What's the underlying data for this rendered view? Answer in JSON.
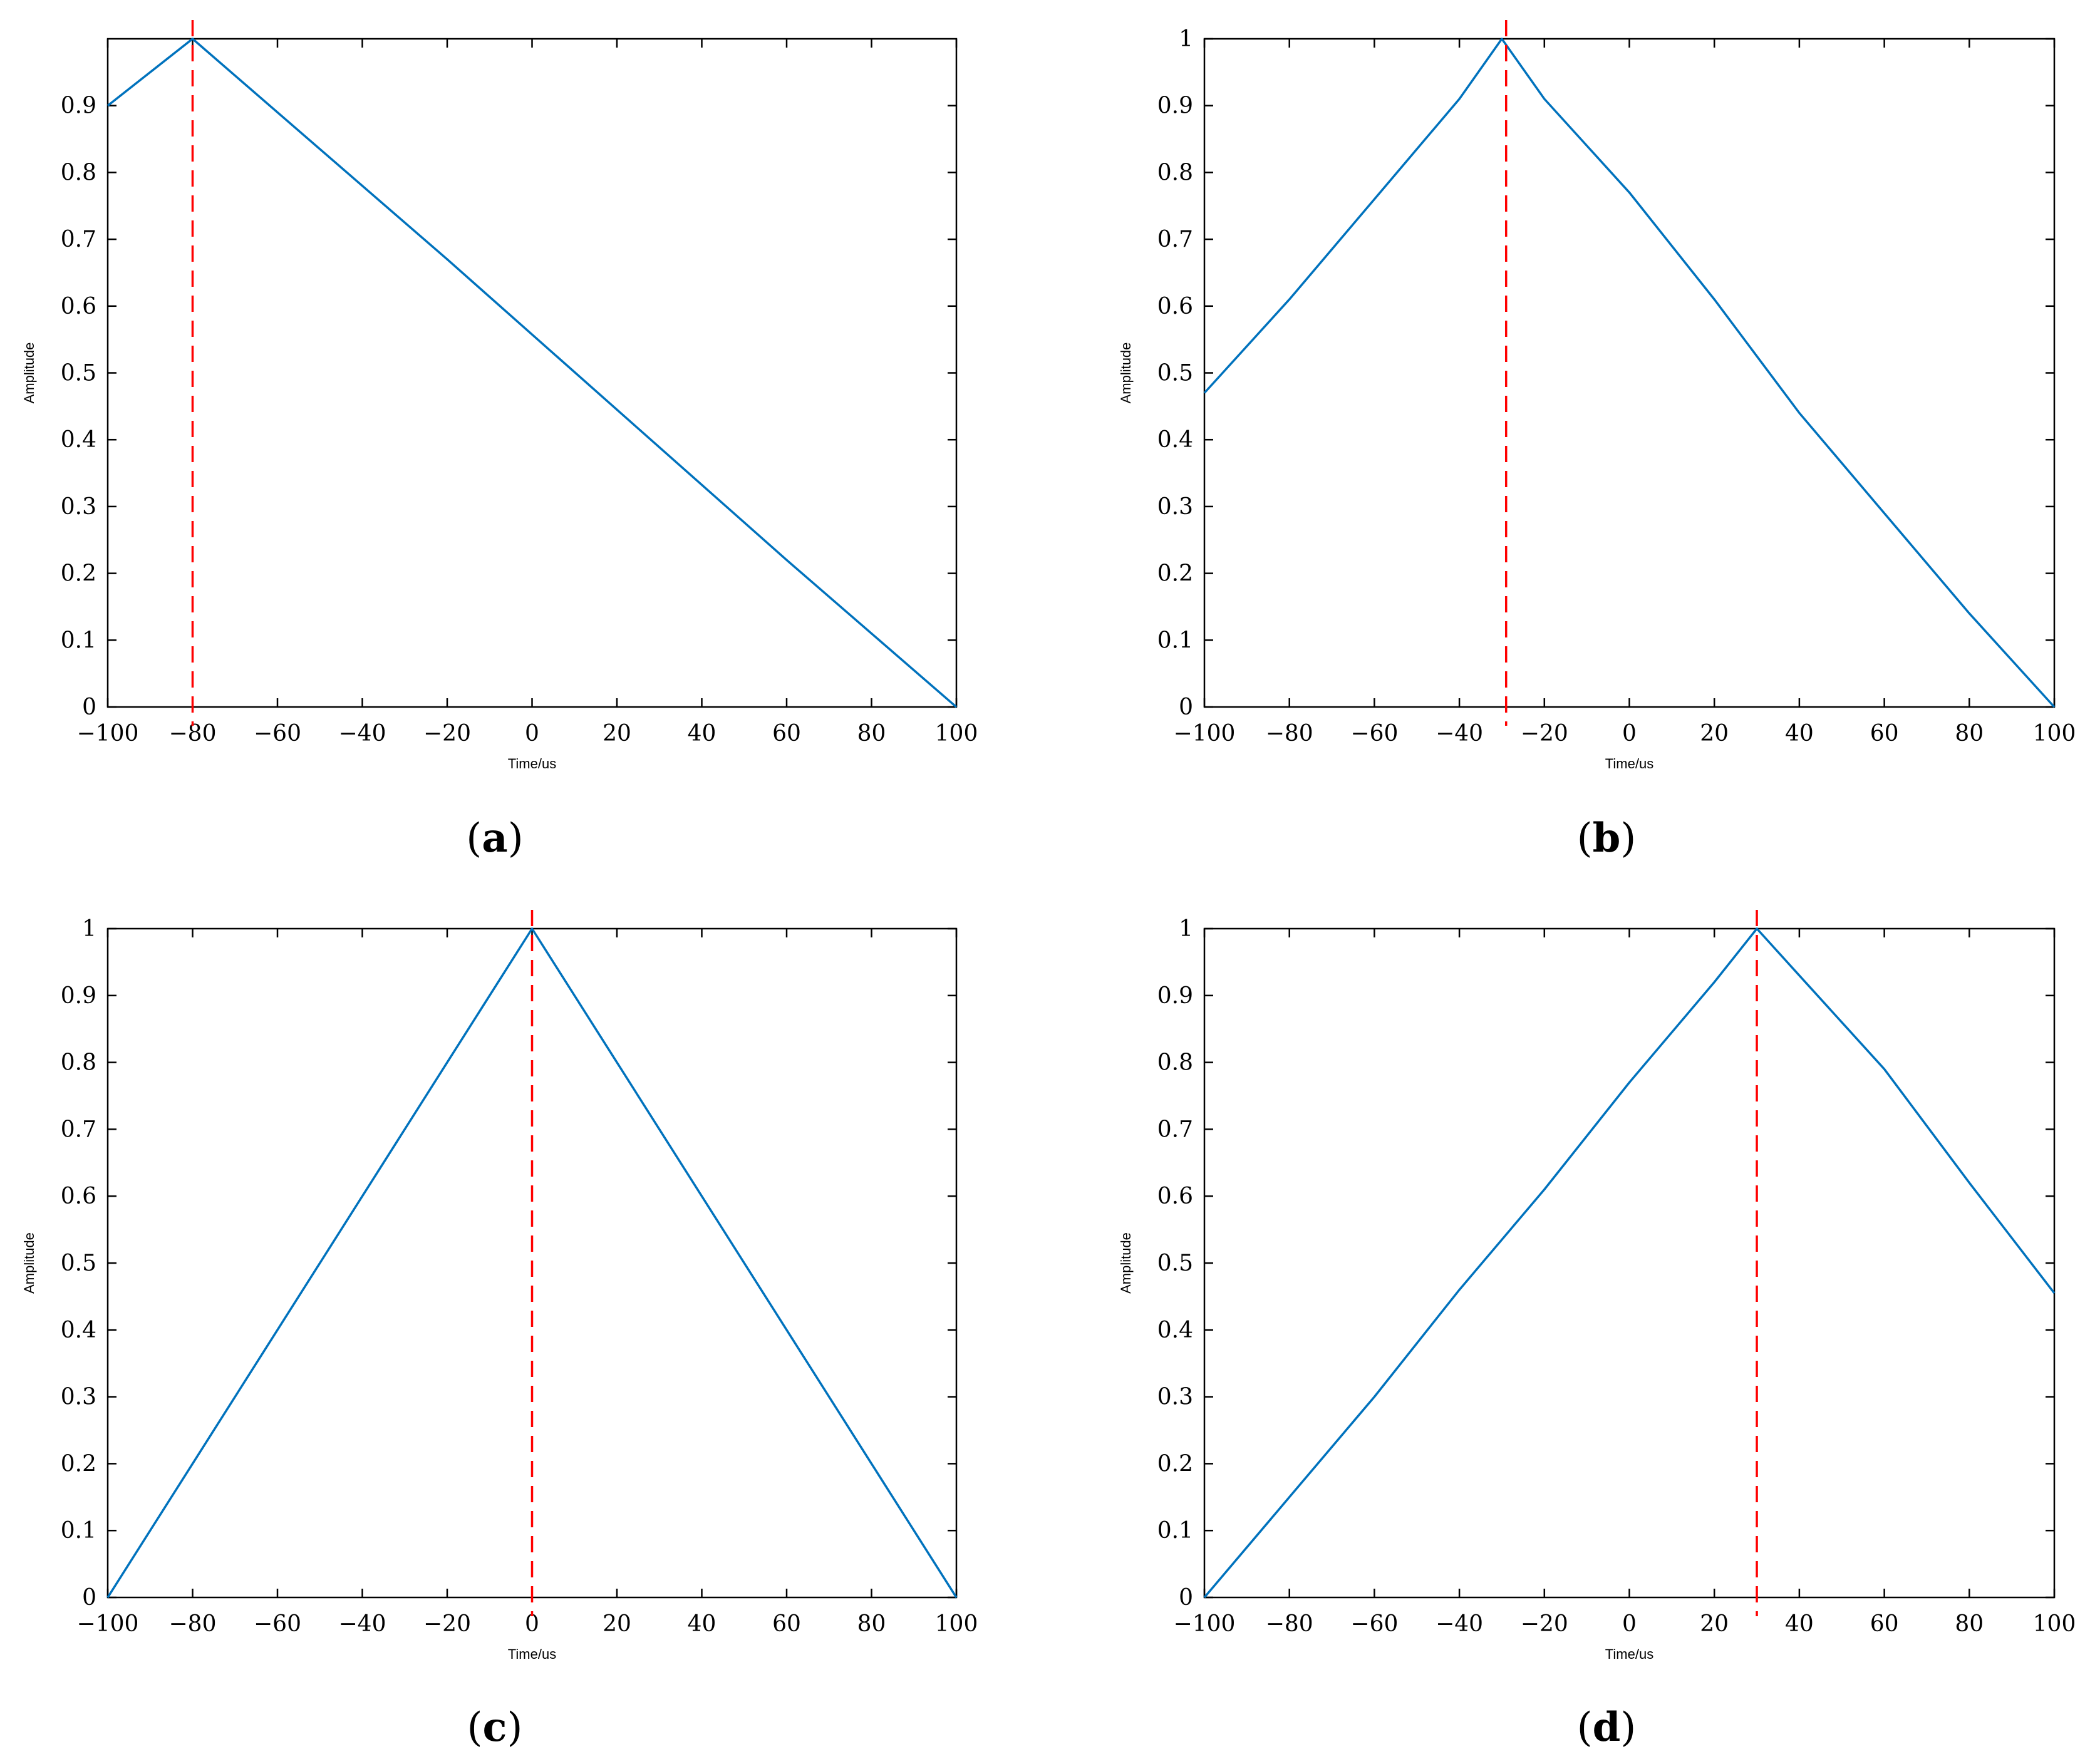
{
  "chart_data": [
    {
      "panel": "(a)",
      "caption_letter": "a",
      "type": "line",
      "xlabel": "Time/us",
      "ylabel": "Amplitude",
      "xlim": [
        -100,
        100
      ],
      "ylim": [
        0,
        1
      ],
      "x_ticks": [
        "−100",
        "−80",
        "−60",
        "−40",
        "−20",
        "0",
        "20",
        "40",
        "60",
        "80",
        "100"
      ],
      "y_ticks": [
        "0",
        "0.1",
        "0.2",
        "0.3",
        "0.4",
        "0.5",
        "0.6",
        "0.7",
        "0.8",
        "0.9"
      ],
      "grid": false,
      "line_color": "#0072BD",
      "marker_color": "#FF0000",
      "series": [
        {
          "x": [
            -100,
            -80,
            -20,
            60,
            100
          ],
          "y": [
            0.9,
            1.0,
            0.67,
            0.22,
            0.0
          ]
        }
      ],
      "marker_line": {
        "x": -80,
        "style": "dashed"
      }
    },
    {
      "panel": "(b)",
      "caption_letter": "b",
      "type": "line",
      "xlabel": "Time/us",
      "ylabel": "Amplitude",
      "xlim": [
        -100,
        100
      ],
      "ylim": [
        0,
        1
      ],
      "x_ticks": [
        "−100",
        "−80",
        "−60",
        "−40",
        "−20",
        "0",
        "20",
        "40",
        "60",
        "80",
        "100"
      ],
      "y_ticks": [
        "0",
        "0.1",
        "0.2",
        "0.3",
        "0.4",
        "0.5",
        "0.6",
        "0.7",
        "0.8",
        "0.9",
        "1"
      ],
      "grid": false,
      "line_color": "#0072BD",
      "marker_color": "#FF0000",
      "series": [
        {
          "x": [
            -100,
            -80,
            -60,
            -40,
            -30,
            -20,
            0,
            20,
            40,
            60,
            80,
            100
          ],
          "y": [
            0.47,
            0.61,
            0.76,
            0.91,
            1.0,
            0.91,
            0.77,
            0.61,
            0.44,
            0.29,
            0.14,
            0.0
          ]
        }
      ],
      "marker_line": {
        "x": -29,
        "style": "dashed"
      }
    },
    {
      "panel": "(c)",
      "caption_letter": "c",
      "type": "line",
      "xlabel": "Time/us",
      "ylabel": "Amplitude",
      "xlim": [
        -100,
        100
      ],
      "ylim": [
        0,
        1
      ],
      "x_ticks": [
        "−100",
        "−80",
        "−60",
        "−40",
        "−20",
        "0",
        "20",
        "40",
        "60",
        "80",
        "100"
      ],
      "y_ticks": [
        "0",
        "0.1",
        "0.2",
        "0.3",
        "0.4",
        "0.5",
        "0.6",
        "0.7",
        "0.8",
        "0.9",
        "1"
      ],
      "grid": false,
      "line_color": "#0072BD",
      "marker_color": "#FF0000",
      "series": [
        {
          "x": [
            -100,
            -80,
            -60,
            -40,
            -20,
            0,
            20,
            40,
            60,
            80,
            100
          ],
          "y": [
            0.0,
            0.2,
            0.4,
            0.6,
            0.8,
            1.0,
            0.8,
            0.6,
            0.4,
            0.2,
            0.0
          ]
        }
      ],
      "marker_line": {
        "x": 0,
        "style": "dashed"
      }
    },
    {
      "panel": "(d)",
      "caption_letter": "d",
      "type": "line",
      "xlabel": "Time/us",
      "ylabel": "Amplitude",
      "xlim": [
        -100,
        100
      ],
      "ylim": [
        0,
        1
      ],
      "x_ticks": [
        "−100",
        "−80",
        "−60",
        "−40",
        "−20",
        "0",
        "20",
        "40",
        "60",
        "80",
        "100"
      ],
      "y_ticks": [
        "0",
        "0.1",
        "0.2",
        "0.3",
        "0.4",
        "0.5",
        "0.6",
        "0.7",
        "0.8",
        "0.9",
        "1"
      ],
      "grid": false,
      "line_color": "#0072BD",
      "marker_color": "#FF0000",
      "series": [
        {
          "x": [
            -100,
            -80,
            -60,
            -40,
            -20,
            0,
            20,
            30,
            40,
            60,
            80,
            100
          ],
          "y": [
            0.0,
            0.15,
            0.3,
            0.46,
            0.61,
            0.77,
            0.92,
            1.0,
            0.93,
            0.79,
            0.62,
            0.455
          ]
        }
      ],
      "marker_line": {
        "x": 30,
        "style": "dashed"
      }
    }
  ]
}
